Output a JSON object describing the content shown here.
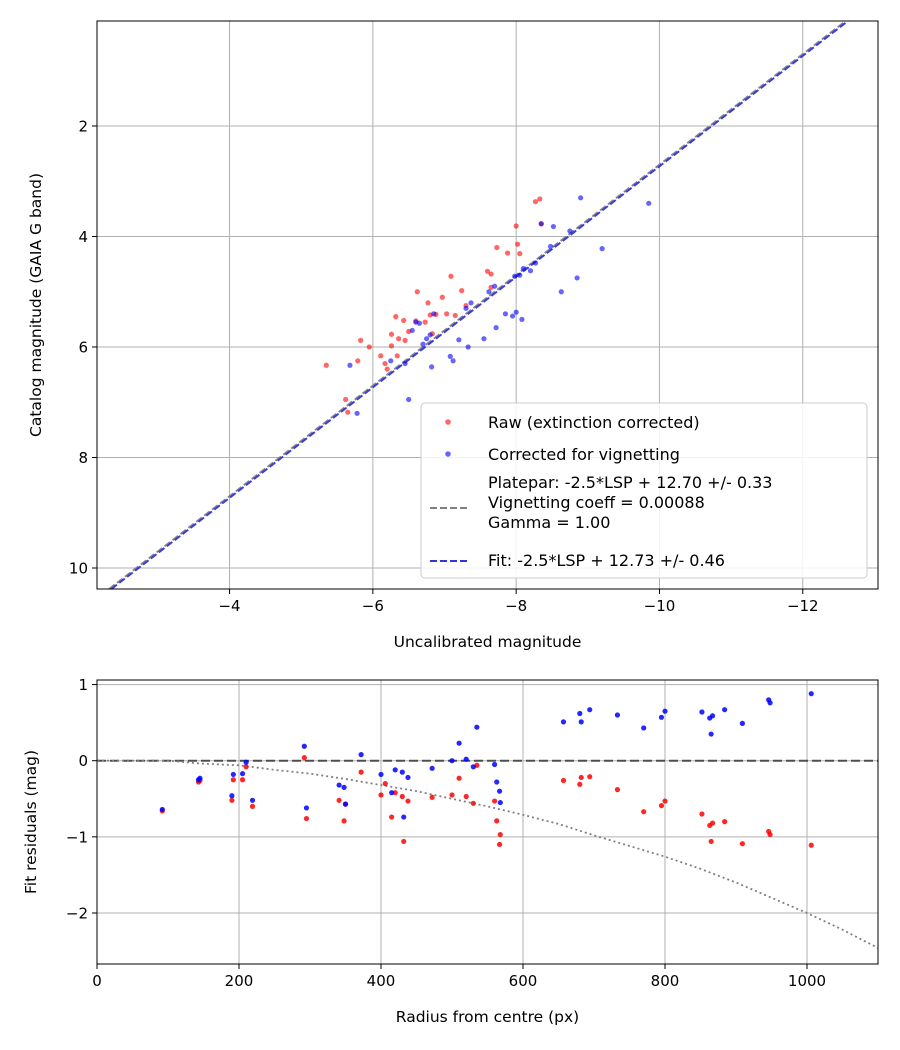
{
  "chart_data": [
    {
      "type": "scatter",
      "xlabel": "Uncalibrated magnitude",
      "ylabel": "Catalog magnitude (GAIA G band)",
      "xlim": [
        -2.15,
        -13.05
      ],
      "ylim": [
        10.38,
        0.1
      ],
      "x_inverted": true,
      "y_inverted": true,
      "xticks": [
        -4,
        -6,
        -8,
        -10,
        -12
      ],
      "xtick_labels": [
        "−4",
        "−6",
        "−8",
        "−10",
        "−12"
      ],
      "yticks": [
        2,
        4,
        6,
        8,
        10
      ],
      "ytick_labels": [
        "2",
        "4",
        "6",
        "8",
        "10"
      ],
      "grid": true,
      "legend_position": "lower-right",
      "legend": [
        {
          "label": "Raw (extinction corrected)",
          "kind": "marker",
          "color": "#ff0000"
        },
        {
          "label": "Corrected for vignetting",
          "kind": "marker",
          "color": "#0000ff"
        },
        {
          "label": "Platepar: -2.5*LSP + 12.70 +/- 0.33\nVignetting coeff = 0.00088\nGamma = 1.00",
          "kind": "line",
          "color": "#808080"
        },
        {
          "label": "Fit: -2.5*LSP + 12.73 +/- 0.46",
          "kind": "line",
          "color": "#3333dd"
        }
      ],
      "series": [
        {
          "name": "Raw (extinction corrected)",
          "kind": "scatter",
          "color": "#ff0000",
          "points": [
            [
              -5.35,
              6.33
            ],
            [
              -5.62,
              6.95
            ],
            [
              -5.65,
              7.18
            ],
            [
              -5.79,
              6.25
            ],
            [
              -5.83,
              5.88
            ],
            [
              -5.95,
              6.0
            ],
            [
              -6.11,
              6.16
            ],
            [
              -6.17,
              6.3
            ],
            [
              -6.2,
              6.4
            ],
            [
              -6.26,
              5.98
            ],
            [
              -6.26,
              5.77
            ],
            [
              -6.32,
              5.45
            ],
            [
              -6.34,
              6.16
            ],
            [
              -6.36,
              5.85
            ],
            [
              -6.43,
              5.52
            ],
            [
              -6.45,
              5.88
            ],
            [
              -6.5,
              5.72
            ],
            [
              -6.6,
              5.53
            ],
            [
              -6.62,
              5.0
            ],
            [
              -6.73,
              5.55
            ],
            [
              -6.77,
              5.2
            ],
            [
              -6.8,
              5.42
            ],
            [
              -6.83,
              5.76
            ],
            [
              -6.88,
              5.41
            ],
            [
              -6.97,
              5.1
            ],
            [
              -7.03,
              5.4
            ],
            [
              -7.09,
              4.72
            ],
            [
              -7.15,
              5.43
            ],
            [
              -7.24,
              4.98
            ],
            [
              -7.3,
              5.25
            ],
            [
              -7.6,
              4.63
            ],
            [
              -7.65,
              4.68
            ],
            [
              -7.65,
              4.92
            ],
            [
              -7.73,
              4.2
            ],
            [
              -7.88,
              4.3
            ],
            [
              -8.0,
              3.81
            ],
            [
              -8.02,
              4.14
            ],
            [
              -8.05,
              4.31
            ],
            [
              -8.27,
              3.37
            ],
            [
              -8.33,
              3.32
            ],
            [
              -8.35,
              3.77
            ]
          ]
        },
        {
          "name": "Corrected for vignetting",
          "kind": "scatter",
          "color": "#0000ff",
          "points": [
            [
              -5.68,
              6.33
            ],
            [
              -5.78,
              7.2
            ],
            [
              -6.25,
              6.25
            ],
            [
              -6.45,
              6.3
            ],
            [
              -6.5,
              6.95
            ],
            [
              -6.55,
              5.7
            ],
            [
              -6.6,
              5.55
            ],
            [
              -6.65,
              5.57
            ],
            [
              -6.7,
              5.95
            ],
            [
              -6.75,
              5.85
            ],
            [
              -6.8,
              5.78
            ],
            [
              -6.82,
              6.36
            ],
            [
              -6.85,
              5.4
            ],
            [
              -7.08,
              6.17
            ],
            [
              -7.12,
              6.25
            ],
            [
              -7.2,
              5.87
            ],
            [
              -7.3,
              5.3
            ],
            [
              -7.33,
              6.0
            ],
            [
              -7.37,
              5.2
            ],
            [
              -7.55,
              5.85
            ],
            [
              -7.62,
              5.0
            ],
            [
              -7.7,
              4.9
            ],
            [
              -7.72,
              5.65
            ],
            [
              -7.85,
              5.4
            ],
            [
              -7.95,
              5.44
            ],
            [
              -7.98,
              4.72
            ],
            [
              -8.0,
              5.37
            ],
            [
              -8.05,
              4.7
            ],
            [
              -8.08,
              5.5
            ],
            [
              -8.1,
              4.58
            ],
            [
              -8.2,
              4.62
            ],
            [
              -8.27,
              4.48
            ],
            [
              -8.35,
              3.77
            ],
            [
              -8.48,
              4.18
            ],
            [
              -8.52,
              3.82
            ],
            [
              -8.63,
              5.0
            ],
            [
              -8.75,
              3.9
            ],
            [
              -8.85,
              4.75
            ],
            [
              -8.9,
              3.3
            ],
            [
              -9.2,
              4.22
            ],
            [
              -9.85,
              3.4
            ]
          ]
        },
        {
          "name": "Platepar: -2.5*LSP + 12.70 +/- 0.33",
          "kind": "line",
          "color": "#808080",
          "dashed": true,
          "slope": 1,
          "intercept": 12.7
        },
        {
          "name": "Fit: -2.5*LSP + 12.73 +/- 0.46",
          "kind": "line",
          "color": "#3333dd",
          "dashed": true,
          "slope": 1,
          "intercept": 12.73
        }
      ]
    },
    {
      "type": "scatter",
      "xlabel": "Radius from centre (px)",
      "ylabel": "Fit residuals (mag)",
      "xlim": [
        0,
        1100
      ],
      "ylim": [
        -2.67,
        1.06
      ],
      "xticks": [
        0,
        200,
        400,
        600,
        800,
        1000
      ],
      "xtick_labels": [
        "0",
        "200",
        "400",
        "600",
        "800",
        "1000"
      ],
      "yticks": [
        -2,
        -1,
        0,
        1
      ],
      "ytick_labels": [
        "−2",
        "−1",
        "0",
        "1"
      ],
      "grid": true,
      "series": [
        {
          "name": "",
          "kind": "scatter",
          "color": "#ff0000",
          "points": [
            [
              92,
              -0.66
            ],
            [
              143,
              -0.28
            ],
            [
              145,
              -0.26
            ],
            [
              190,
              -0.52
            ],
            [
              192,
              -0.25
            ],
            [
              205,
              -0.25
            ],
            [
              210,
              -0.08
            ],
            [
              219,
              -0.6
            ],
            [
              292,
              0.04
            ],
            [
              295,
              -0.76
            ],
            [
              341,
              -0.52
            ],
            [
              348,
              -0.79
            ],
            [
              350,
              -0.57
            ],
            [
              372,
              -0.15
            ],
            [
              400,
              -0.45
            ],
            [
              406,
              -0.3
            ],
            [
              415,
              -0.74
            ],
            [
              420,
              -0.42
            ],
            [
              430,
              -0.47
            ],
            [
              432,
              -1.06
            ],
            [
              438,
              -0.53
            ],
            [
              472,
              -0.48
            ],
            [
              500,
              -0.45
            ],
            [
              510,
              -0.23
            ],
            [
              520,
              -0.47
            ],
            [
              530,
              -0.56
            ],
            [
              535,
              -0.06
            ],
            [
              560,
              -0.53
            ],
            [
              563,
              -0.79
            ],
            [
              567,
              -1.1
            ],
            [
              568,
              -0.97
            ],
            [
              657,
              -0.26
            ],
            [
              680,
              -0.31
            ],
            [
              682,
              -0.22
            ],
            [
              694,
              -0.21
            ],
            [
              733,
              -0.38
            ],
            [
              770,
              -0.67
            ],
            [
              795,
              -0.59
            ],
            [
              800,
              -0.53
            ],
            [
              852,
              -0.7
            ],
            [
              863,
              -0.85
            ],
            [
              865,
              -1.06
            ],
            [
              867,
              -0.82
            ],
            [
              884,
              -0.8
            ],
            [
              909,
              -1.09
            ],
            [
              946,
              -0.93
            ],
            [
              948,
              -0.97
            ],
            [
              1006,
              -1.11
            ]
          ]
        },
        {
          "name": "",
          "kind": "scatter",
          "color": "#0000ff",
          "points": [
            [
              92,
              -0.64
            ],
            [
              143,
              -0.25
            ],
            [
              145,
              -0.23
            ],
            [
              190,
              -0.46
            ],
            [
              192,
              -0.18
            ],
            [
              205,
              -0.17
            ],
            [
              210,
              -0.02
            ],
            [
              219,
              -0.52
            ],
            [
              292,
              0.19
            ],
            [
              295,
              -0.62
            ],
            [
              341,
              -0.32
            ],
            [
              348,
              -0.35
            ],
            [
              350,
              -0.57
            ],
            [
              372,
              0.08
            ],
            [
              400,
              -0.18
            ],
            [
              415,
              -0.42
            ],
            [
              420,
              -0.12
            ],
            [
              430,
              -0.15
            ],
            [
              432,
              -0.74
            ],
            [
              438,
              -0.22
            ],
            [
              472,
              -0.1
            ],
            [
              500,
              -0.0
            ],
            [
              510,
              0.23
            ],
            [
              520,
              0.02
            ],
            [
              530,
              -0.08
            ],
            [
              535,
              0.44
            ],
            [
              560,
              -0.05
            ],
            [
              563,
              -0.28
            ],
            [
              567,
              -0.4
            ],
            [
              568,
              -0.55
            ],
            [
              657,
              0.51
            ],
            [
              680,
              0.62
            ],
            [
              682,
              0.51
            ],
            [
              694,
              0.67
            ],
            [
              733,
              0.6
            ],
            [
              770,
              0.43
            ],
            [
              795,
              0.57
            ],
            [
              800,
              0.65
            ],
            [
              852,
              0.64
            ],
            [
              863,
              0.56
            ],
            [
              865,
              0.35
            ],
            [
              867,
              0.59
            ],
            [
              884,
              0.67
            ],
            [
              909,
              0.49
            ],
            [
              946,
              0.8
            ],
            [
              948,
              0.76
            ],
            [
              1006,
              0.88
            ]
          ]
        },
        {
          "name": "",
          "kind": "line",
          "color": "#404040",
          "dashed": true,
          "points": [
            [
              0,
              0
            ],
            [
              1100,
              0
            ]
          ]
        },
        {
          "name": "",
          "kind": "curve",
          "color": "#808080",
          "dotted": true,
          "function": "-2 * (r/1000)^2 beyond 100 px",
          "points": [
            [
              0,
              0
            ],
            [
              100,
              0.0
            ],
            [
              150,
              -0.04
            ],
            [
              200,
              -0.06
            ],
            [
              250,
              -0.12
            ],
            [
              300,
              -0.17
            ],
            [
              350,
              -0.24
            ],
            [
              400,
              -0.32
            ],
            [
              450,
              -0.4
            ],
            [
              500,
              -0.5
            ],
            [
              550,
              -0.6
            ],
            [
              600,
              -0.71
            ],
            [
              650,
              -0.83
            ],
            [
              700,
              -0.98
            ],
            [
              750,
              -1.12
            ],
            [
              800,
              -1.26
            ],
            [
              850,
              -1.42
            ],
            [
              900,
              -1.6
            ],
            [
              950,
              -1.8
            ],
            [
              1000,
              -2.0
            ],
            [
              1050,
              -2.22
            ],
            [
              1100,
              -2.46
            ]
          ]
        }
      ]
    }
  ]
}
